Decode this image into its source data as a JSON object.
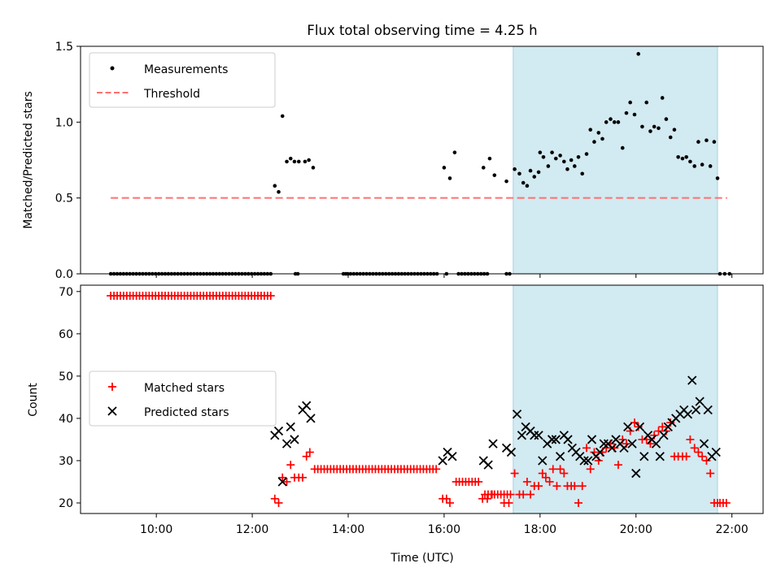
{
  "figure": {
    "title": "Flux total observing time = 4.25 h",
    "xlabel": "Time (UTC)",
    "xticks": [
      {
        "value": 10,
        "label": "10:00"
      },
      {
        "value": 12,
        "label": "12:00"
      },
      {
        "value": 14,
        "label": "14:00"
      },
      {
        "value": 16,
        "label": "16:00"
      },
      {
        "value": 18,
        "label": "18:00"
      },
      {
        "value": 20,
        "label": "20:00"
      },
      {
        "value": 22,
        "label": "22:00"
      }
    ],
    "xlim": [
      8.42,
      22.65
    ],
    "highlight": {
      "start": 17.44,
      "end": 21.7,
      "color": "#add8e6"
    },
    "colors": {
      "measurements": "#000000",
      "threshold": "#ff7070",
      "matched": "#ff0000",
      "predicted": "#000000"
    }
  },
  "chart_data": [
    {
      "type": "scatter",
      "id": "ratio",
      "ylabel": "Matched/Predicted stars",
      "ylim": [
        0.0,
        1.5
      ],
      "yticks": [
        0.0,
        0.5,
        1.0,
        1.5
      ],
      "ytick_labels": [
        "0.0",
        "0.5",
        "1.0",
        "1.5"
      ],
      "legend": {
        "position": "upper-left",
        "entries": [
          "Measurements",
          "Threshold"
        ]
      },
      "threshold": {
        "y": 0.5,
        "x_start": 9.05,
        "x_end": 21.9
      },
      "zero_segments": [
        {
          "start": 9.05,
          "end": 12.4,
          "step": 0.0667
        },
        {
          "start": 14.05,
          "end": 15.9,
          "step": 0.0667
        },
        {
          "start": 16.3,
          "end": 16.95,
          "step": 0.0667
        },
        {
          "start": 17.3,
          "end": 17.4,
          "step": 0.0667
        }
      ],
      "zero_extra": [
        12.9,
        12.95,
        13.9,
        13.95,
        13.99,
        16.05,
        21.75,
        21.85,
        21.95
      ],
      "x": [
        12.47,
        12.55,
        12.63,
        12.72,
        12.8,
        12.88,
        12.97,
        13.1,
        13.18,
        13.27,
        16.0,
        16.12,
        16.22,
        16.82,
        16.95,
        17.05,
        17.3,
        17.47,
        17.57,
        17.65,
        17.73,
        17.8,
        17.88,
        17.97,
        18.0,
        18.07,
        18.17,
        18.25,
        18.33,
        18.42,
        18.5,
        18.57,
        18.65,
        18.72,
        18.8,
        18.88,
        18.97,
        19.05,
        19.13,
        19.22,
        19.3,
        19.38,
        19.47,
        19.55,
        19.63,
        19.72,
        19.8,
        19.88,
        19.97,
        20.05,
        20.13,
        20.22,
        20.3,
        20.38,
        20.47,
        20.55,
        20.63,
        20.72,
        20.8,
        20.88,
        20.97,
        21.05,
        21.13,
        21.22,
        21.3,
        21.38,
        21.47,
        21.55,
        21.63,
        21.7
      ],
      "y": [
        0.58,
        0.54,
        1.04,
        0.74,
        0.76,
        0.74,
        0.74,
        0.74,
        0.75,
        0.7,
        0.7,
        0.63,
        0.8,
        0.7,
        0.76,
        0.65,
        0.61,
        0.69,
        0.66,
        0.6,
        0.58,
        0.68,
        0.64,
        0.67,
        0.8,
        0.77,
        0.71,
        0.8,
        0.76,
        0.78,
        0.74,
        0.69,
        0.75,
        0.71,
        0.77,
        0.66,
        0.79,
        0.95,
        0.87,
        0.93,
        0.89,
        1.0,
        1.02,
        1.0,
        1.0,
        0.83,
        1.06,
        1.13,
        1.05,
        1.45,
        0.97,
        1.13,
        0.94,
        0.97,
        0.96,
        1.16,
        1.02,
        0.9,
        0.95,
        0.77,
        0.76,
        0.77,
        0.74,
        0.71,
        0.87,
        0.72,
        0.88,
        0.71,
        0.87,
        0.63
      ]
    },
    {
      "type": "scatter",
      "id": "counts",
      "ylabel": "Count",
      "ylim": [
        17.5,
        71.5
      ],
      "yticks": [
        20,
        30,
        40,
        50,
        60,
        70
      ],
      "ytick_labels": [
        "20",
        "30",
        "40",
        "50",
        "60",
        "70"
      ],
      "legend": {
        "position": "center-left",
        "entries": [
          "Matched stars",
          "Predicted stars"
        ]
      },
      "matched_runs": [
        {
          "start": 9.05,
          "end": 12.4,
          "step": 0.0667,
          "value": 69
        },
        {
          "start": 13.3,
          "end": 15.9,
          "step": 0.0667,
          "value": 28
        },
        {
          "start": 16.25,
          "end": 16.75,
          "step": 0.0667,
          "value": 25
        },
        {
          "start": 16.85,
          "end": 17.4,
          "step": 0.0667,
          "value": 22
        },
        {
          "start": 21.75,
          "end": 21.95,
          "step": 0.0667,
          "value": 20
        }
      ],
      "matched_x": [
        12.47,
        12.55,
        12.63,
        12.72,
        12.8,
        12.88,
        12.97,
        13.05,
        13.13,
        13.2,
        15.97,
        16.05,
        16.12,
        16.8,
        16.9,
        17.0,
        17.25,
        17.35,
        17.47,
        17.57,
        17.65,
        17.73,
        17.8,
        17.88,
        17.97,
        18.05,
        18.12,
        18.2,
        18.27,
        18.35,
        18.42,
        18.5,
        18.57,
        18.65,
        18.72,
        18.8,
        18.88,
        18.97,
        19.05,
        19.13,
        19.22,
        19.3,
        19.38,
        19.47,
        19.55,
        19.63,
        19.72,
        19.8,
        19.88,
        19.97,
        20.05,
        20.13,
        20.22,
        20.3,
        20.38,
        20.47,
        20.55,
        20.63,
        20.72,
        20.8,
        20.88,
        20.97,
        21.05,
        21.13,
        21.22,
        21.3,
        21.38,
        21.47,
        21.55,
        21.63,
        21.7
      ],
      "matched_y": [
        21,
        20,
        26,
        25,
        29,
        26,
        26,
        26,
        31,
        32,
        21,
        21,
        20,
        21,
        21,
        22,
        20,
        20,
        27,
        22,
        22,
        25,
        22,
        24,
        24,
        27,
        26,
        25,
        28,
        24,
        28,
        27,
        24,
        24,
        24,
        20,
        24,
        33,
        28,
        32,
        30,
        32,
        33,
        34,
        33,
        29,
        35,
        34,
        37,
        39,
        38,
        35,
        35,
        34,
        36,
        37,
        38,
        37,
        39,
        31,
        31,
        31,
        31,
        35,
        33,
        32,
        31,
        30,
        27,
        20,
        20
      ],
      "predicted_x": [
        12.47,
        12.55,
        12.63,
        12.72,
        12.8,
        12.88,
        13.05,
        13.13,
        13.22,
        15.97,
        16.07,
        16.17,
        16.82,
        16.92,
        17.02,
        17.3,
        17.4,
        17.52,
        17.62,
        17.7,
        17.8,
        17.88,
        17.97,
        18.05,
        18.15,
        18.25,
        18.33,
        18.42,
        18.5,
        18.58,
        18.67,
        18.75,
        18.83,
        18.92,
        19.0,
        19.08,
        19.17,
        19.25,
        19.33,
        19.42,
        19.5,
        19.58,
        19.67,
        19.75,
        19.83,
        19.92,
        20.0,
        20.08,
        20.17,
        20.25,
        20.33,
        20.42,
        20.5,
        20.58,
        20.67,
        20.75,
        20.83,
        20.92,
        21.0,
        21.08,
        21.17,
        21.25,
        21.33,
        21.42,
        21.5,
        21.58,
        21.67
      ],
      "predicted_y": [
        36,
        37,
        25,
        34,
        38,
        35,
        42,
        43,
        40,
        30,
        32,
        31,
        30,
        29,
        34,
        33,
        32,
        41,
        36,
        38,
        37,
        36,
        36,
        30,
        34,
        35,
        35,
        31,
        36,
        35,
        33,
        32,
        31,
        30,
        30,
        35,
        31,
        32,
        34,
        34,
        33,
        35,
        34,
        33,
        38,
        34,
        27,
        38,
        31,
        36,
        35,
        34,
        31,
        36,
        38,
        39,
        40,
        41,
        42,
        41,
        49,
        42,
        44,
        34,
        42,
        31,
        32
      ]
    }
  ]
}
